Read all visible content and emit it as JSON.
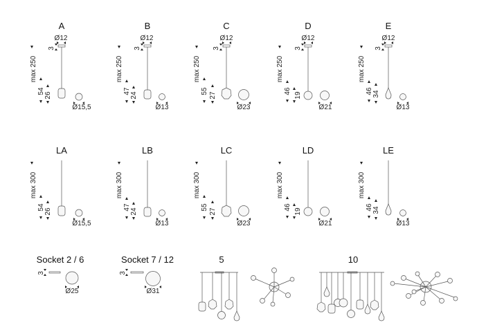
{
  "lamps": [
    {
      "title": "A",
      "top_dia": "Ø12",
      "cable_top": "3",
      "max_label": "max 250",
      "dim_total": "54",
      "dim_shade": "26",
      "bottom_dia": "Ø15,5"
    },
    {
      "title": "B",
      "top_dia": "Ø12",
      "cable_top": "3",
      "max_label": "max 250",
      "dim_total": "47",
      "dim_shade": "24",
      "bottom_dia": "Ø13"
    },
    {
      "title": "C",
      "top_dia": "Ø12",
      "cable_top": "3",
      "max_label": "max 250",
      "dim_total": "55",
      "dim_shade": "27",
      "bottom_dia": "Ø23"
    },
    {
      "title": "D",
      "top_dia": "Ø12",
      "cable_top": "3",
      "max_label": "max 250",
      "dim_total": "46",
      "dim_shade": "19",
      "bottom_dia": "Ø21"
    },
    {
      "title": "E",
      "top_dia": "Ø12",
      "cable_top": "3",
      "max_label": "max 250",
      "dim_total": "46",
      "dim_shade": "34",
      "bottom_dia": "Ø13"
    },
    {
      "title": "LA",
      "max_label": "max 300",
      "dim_total": "54",
      "dim_shade": "26",
      "bottom_dia": "Ø15,5"
    },
    {
      "title": "LB",
      "max_label": "max 300",
      "dim_total": "47",
      "dim_shade": "24",
      "bottom_dia": "Ø13"
    },
    {
      "title": "LC",
      "max_label": "max 300",
      "dim_total": "55",
      "dim_shade": "27",
      "bottom_dia": "Ø23"
    },
    {
      "title": "LD",
      "max_label": "max 300",
      "dim_total": "46",
      "dim_shade": "19",
      "bottom_dia": "Ø21"
    },
    {
      "title": "LE",
      "max_label": "max 300",
      "dim_total": "46",
      "dim_shade": "34",
      "bottom_dia": "Ø13"
    }
  ],
  "sockets": [
    {
      "title": "Socket 2 / 6",
      "height": "3",
      "dia": "Ø25"
    },
    {
      "title": "Socket 7 / 12",
      "height": "3",
      "dia": "Ø31"
    }
  ],
  "configs": [
    {
      "title": "5"
    },
    {
      "title": "10"
    }
  ]
}
